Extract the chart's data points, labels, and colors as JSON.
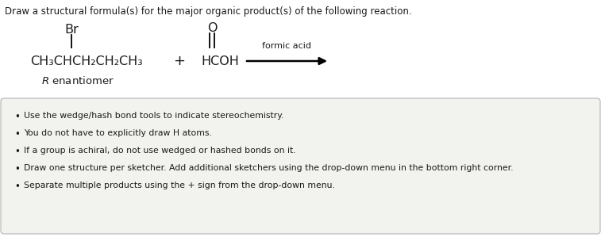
{
  "title_text": "Draw a structural formula(s) for the major organic product(s) of the following reaction.",
  "bg_color": "#ffffff",
  "box_bg_color": "#f2f2ee",
  "box_edge_color": "#bbbbbb",
  "text_color": "#1a1a1a",
  "condition": "formic acid",
  "bullet_points": [
    "Use the wedge/hash bond tools to indicate stereochemistry.",
    "You do not have to explicitly draw H atoms.",
    "If a group is achiral, do not use wedged or hashed bonds on it.",
    "Draw one structure per sketcher. Add additional sketchers using the drop-down menu in the bottom right corner.",
    "Separate multiple products using the + sign from the drop-down menu."
  ],
  "font_size_title": 8.5,
  "font_size_chem": 11.5,
  "font_size_label": 9.5,
  "font_size_bullets": 7.8,
  "font_size_condition": 8.0
}
